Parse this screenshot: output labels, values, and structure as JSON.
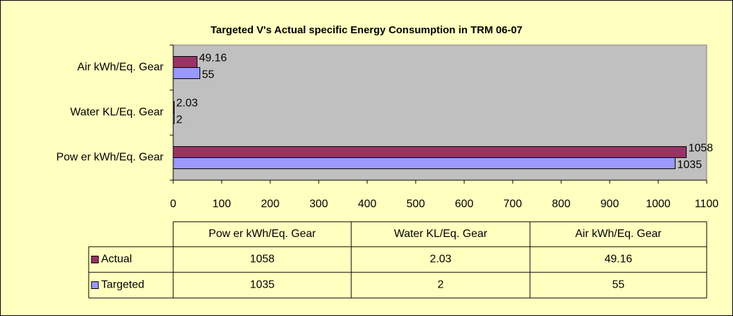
{
  "chart_data": {
    "type": "bar",
    "orientation": "horizontal",
    "title": "Targeted V's Actual specific Energy Consumption in TRM 06-07",
    "categories": [
      "Pow er kWh/Eq. Gear",
      "Water KL/Eq. Gear",
      "Air kWh/Eq. Gear"
    ],
    "series": [
      {
        "name": "Actual",
        "color": "#993366",
        "values": [
          1058,
          2.03,
          49.16
        ]
      },
      {
        "name": "Targeted",
        "color": "#9999ff",
        "values": [
          1035,
          2,
          55
        ]
      }
    ],
    "xlim": [
      0,
      1100
    ],
    "xticks": [
      0,
      100,
      200,
      300,
      400,
      500,
      600,
      700,
      800,
      900,
      1000,
      1100
    ],
    "data_table": true
  }
}
